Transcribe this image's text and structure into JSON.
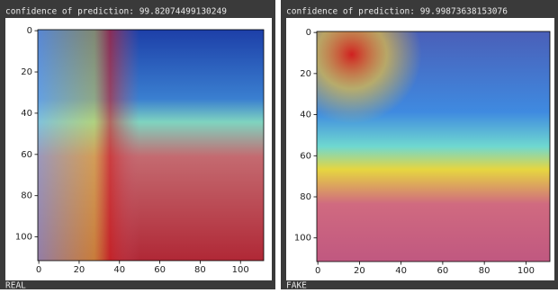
{
  "panels": [
    {
      "header": "confidence of prediction: 99.82074499130249",
      "footer": "REAL",
      "xlim": [
        -0.5,
        111.5
      ],
      "ylim": [
        -0.5,
        111.5
      ],
      "xticks": [
        0,
        20,
        40,
        60,
        80,
        100
      ],
      "yticks": [
        0,
        20,
        40,
        60,
        80,
        100
      ]
    },
    {
      "header": "confidence of prediction: 99.99873638153076",
      "footer": "FAKE",
      "xlim": [
        -0.5,
        111.5
      ],
      "ylim": [
        -0.5,
        111.5
      ],
      "xticks": [
        0,
        20,
        40,
        60,
        80,
        100
      ],
      "yticks": [
        0,
        20,
        40,
        60,
        80,
        100
      ]
    }
  ]
}
